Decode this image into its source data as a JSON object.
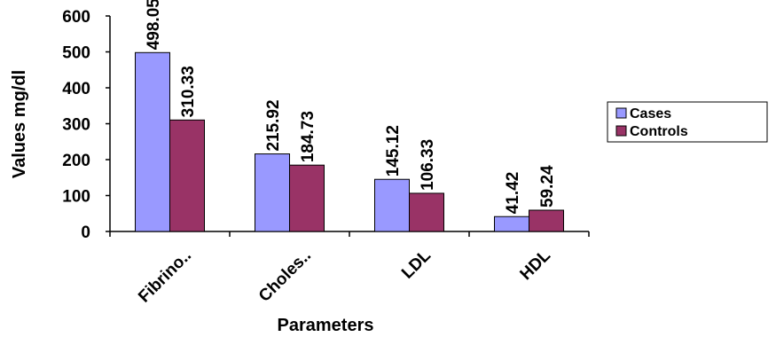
{
  "chart_data": {
    "type": "bar",
    "categories": [
      "Fibrino..",
      "Choles..",
      "LDL",
      "HDL"
    ],
    "series": [
      {
        "name": "Cases",
        "values": [
          498.05,
          215.92,
          145.12,
          41.42
        ],
        "color": "#9999ff"
      },
      {
        "name": "Controls",
        "values": [
          310.33,
          184.73,
          106.33,
          59.24
        ],
        "color": "#993366"
      }
    ],
    "data_labels": [
      [
        "498.05",
        "215.92",
        "145.12",
        "41.42"
      ],
      [
        "310.33",
        "184.73",
        "106.33",
        "59.24"
      ]
    ],
    "xlabel": "Parameters",
    "ylabel": "Values mg/dl",
    "ylim": [
      0,
      600
    ],
    "yticks": [
      0,
      100,
      200,
      300,
      400,
      500,
      600
    ],
    "grid": false,
    "legend_position": "right"
  }
}
